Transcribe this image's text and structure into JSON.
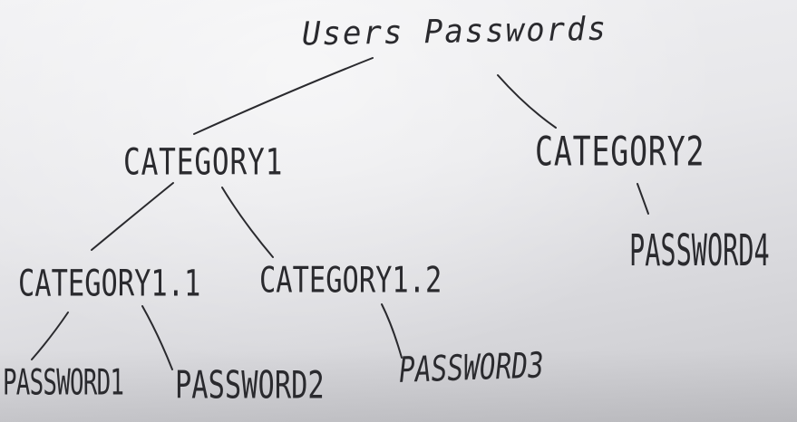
{
  "diagram": {
    "nodes": {
      "root": "Users Passwords",
      "category1": "CATEGORY1",
      "category2": "CATEGORY2",
      "category1_1": "CATEGORY1.1",
      "category1_2": "CATEGORY1.2",
      "password1": "PASSWORD1",
      "password2": "PASSWORD2",
      "password3": "PASSWORD3",
      "password4": "PASSWORD4"
    },
    "edges": [
      [
        "root",
        "category1"
      ],
      [
        "root",
        "category2"
      ],
      [
        "category1",
        "category1_1"
      ],
      [
        "category1",
        "category1_2"
      ],
      [
        "category1_1",
        "password1"
      ],
      [
        "category1_1",
        "password2"
      ],
      [
        "category1_2",
        "password3"
      ],
      [
        "category2",
        "password4"
      ]
    ],
    "colors": {
      "ink": "#2a2a2e",
      "paper": "#e7e7ea"
    }
  }
}
